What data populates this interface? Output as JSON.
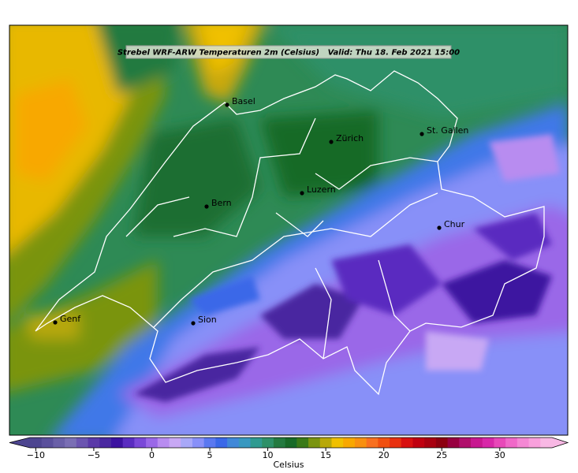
{
  "title": "Strebel WRF-ARW Temperaturen 2m (Celsius)   Valid: Thu 18. Feb 2021 15:00",
  "cities": [
    "Basel",
    "Zürich",
    "St. Gallen",
    "Bern",
    "Luzern",
    "Chur",
    "Genf",
    "Sion"
  ],
  "colorbar": {
    "label": "Celsius",
    "lim": [
      -10.5,
      34.5
    ],
    "ticks": [
      {
        "value": -10,
        "label": "−10"
      },
      {
        "value": -5,
        "label": "−5"
      },
      0,
      5,
      10,
      15,
      20,
      25,
      30
    ],
    "levels": [
      {
        "value": -10.5,
        "color": "#4d4590"
      },
      {
        "value": -9.5,
        "color": "#5a509c"
      },
      {
        "value": -8.5,
        "color": "#6a60a8"
      },
      {
        "value": -7.5,
        "color": "#7a6fb4"
      },
      {
        "value": -6.5,
        "color": "#6b55b0"
      },
      {
        "value": -5.5,
        "color": "#5a3aa8"
      },
      {
        "value": -4.5,
        "color": "#4a28a0"
      },
      {
        "value": -3.5,
        "color": "#3c12a0"
      },
      {
        "value": -2.5,
        "color": "#5a2cc0"
      },
      {
        "value": -1.5,
        "color": "#7a48d8"
      },
      {
        "value": -0.5,
        "color": "#9a68e8"
      },
      {
        "value": 0.5,
        "color": "#b88cf0"
      },
      {
        "value": 1.5,
        "color": "#c8a8f4"
      },
      {
        "value": 2.5,
        "color": "#a8a8f8"
      },
      {
        "value": 3.5,
        "color": "#8890f8"
      },
      {
        "value": 4.5,
        "color": "#5a78f0"
      },
      {
        "value": 5.5,
        "color": "#3a68e8"
      },
      {
        "value": 6.5,
        "color": "#4088d8"
      },
      {
        "value": 7.5,
        "color": "#3898c0"
      },
      {
        "value": 8.5,
        "color": "#2f9a90"
      },
      {
        "value": 9.5,
        "color": "#2e9068"
      },
      {
        "value": 10.5,
        "color": "#247a40"
      },
      {
        "value": 11.5,
        "color": "#186a28"
      },
      {
        "value": 12.5,
        "color": "#3a7a18"
      },
      {
        "value": 13.5,
        "color": "#7a9410"
      },
      {
        "value": 14.5,
        "color": "#b8a808"
      },
      {
        "value": 15.5,
        "color": "#f0c000"
      },
      {
        "value": 16.5,
        "color": "#f8a800"
      },
      {
        "value": 17.5,
        "color": "#f89010"
      },
      {
        "value": 18.5,
        "color": "#f87020"
      },
      {
        "value": 19.5,
        "color": "#f05010"
      },
      {
        "value": 20.5,
        "color": "#e83010"
      },
      {
        "value": 21.5,
        "color": "#d81010"
      },
      {
        "value": 22.5,
        "color": "#c00010"
      },
      {
        "value": 23.5,
        "color": "#a80010"
      },
      {
        "value": 24.5,
        "color": "#8c0010"
      },
      {
        "value": 25.5,
        "color": "#980040"
      },
      {
        "value": 26.5,
        "color": "#b0106c"
      },
      {
        "value": 27.5,
        "color": "#c81890"
      },
      {
        "value": 28.5,
        "color": "#d828a8"
      },
      {
        "value": 29.5,
        "color": "#e848b8"
      },
      {
        "value": 30.5,
        "color": "#f068c8"
      },
      {
        "value": 31.5,
        "color": "#f488d4"
      },
      {
        "value": 32.5,
        "color": "#f8a0dc"
      },
      {
        "value": 33.5,
        "color": "#f8b8e4"
      }
    ]
  }
}
